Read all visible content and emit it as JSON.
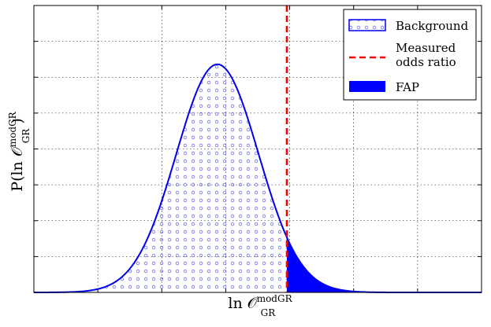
{
  "chart_data": {
    "type": "area",
    "xlabel": {
      "base": "ln 𝒪",
      "sup": "modGR",
      "sub": "GR"
    },
    "ylabel": {
      "prefix": "P(ln 𝒪",
      "sup": "modGR",
      "sub": "GR",
      "suffix": ")"
    },
    "xlim": [
      0,
      1
    ],
    "ylim": [
      0,
      1
    ],
    "grid": true,
    "tick_labels": "none",
    "legend_position": "top-right",
    "legend": [
      "Background",
      "Measured odds ratio",
      "FAP"
    ],
    "background_distribution": {
      "shape": "gaussian",
      "mean": 0.41,
      "sigma": 0.092,
      "peak": 0.795,
      "hatch": "small circles",
      "color": "#0000ee"
    },
    "measured_odds_ratio": {
      "x": 0.565,
      "style": "dashed",
      "color": "#ff0000"
    },
    "fap_region": {
      "x_from": 0.565,
      "x_to": 1.0,
      "color": "#0000ff"
    }
  }
}
